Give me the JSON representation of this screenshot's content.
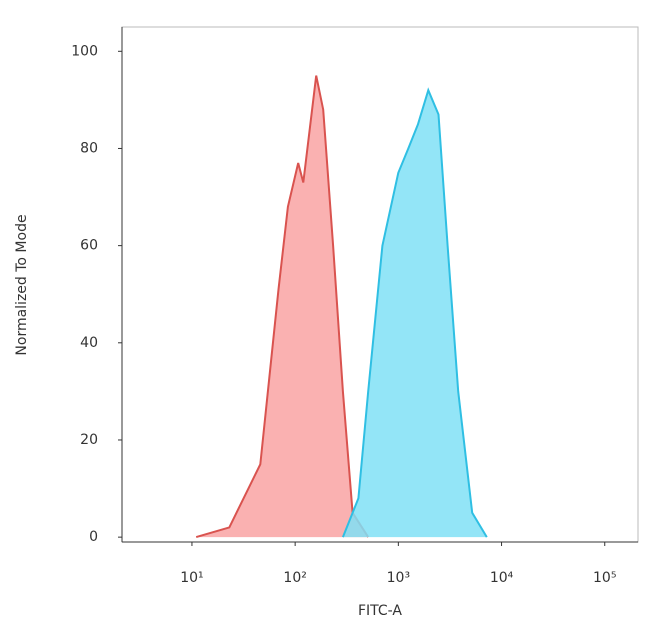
{
  "chart_data": {
    "type": "area",
    "x_label": "FITC-A",
    "y_label": "Normalized To Mode",
    "xscale": "log",
    "xlim": [
      2.1,
      210000
    ],
    "ylim": [
      -1,
      105
    ],
    "xticks": [
      {
        "value": 10,
        "label": "10¹"
      },
      {
        "value": 100,
        "label": "10²"
      },
      {
        "value": 1000,
        "label": "10³"
      },
      {
        "value": 10000,
        "label": "10⁴"
      },
      {
        "value": 100000,
        "label": "10⁵"
      }
    ],
    "yticks": [
      0,
      20,
      40,
      60,
      80,
      100
    ],
    "series": [
      {
        "color": "#d9534f",
        "fill": "#f9a3a3",
        "x": [
          11,
          23,
          46,
          69,
          85,
          107,
          120,
          160,
          187,
          233,
          290,
          360,
          510
        ],
        "values": [
          0,
          2,
          15,
          51,
          68,
          77,
          73,
          95,
          88,
          60,
          30,
          5,
          0
        ]
      },
      {
        "color": "#2fbfe3",
        "fill": "#80e0f6",
        "x": [
          290,
          410,
          510,
          700,
          1000,
          1250,
          1550,
          1950,
          2450,
          3000,
          3800,
          5200,
          7200
        ],
        "values": [
          0,
          8,
          30,
          60,
          75,
          80,
          85,
          92,
          87,
          60,
          30,
          5,
          0
        ]
      }
    ]
  }
}
